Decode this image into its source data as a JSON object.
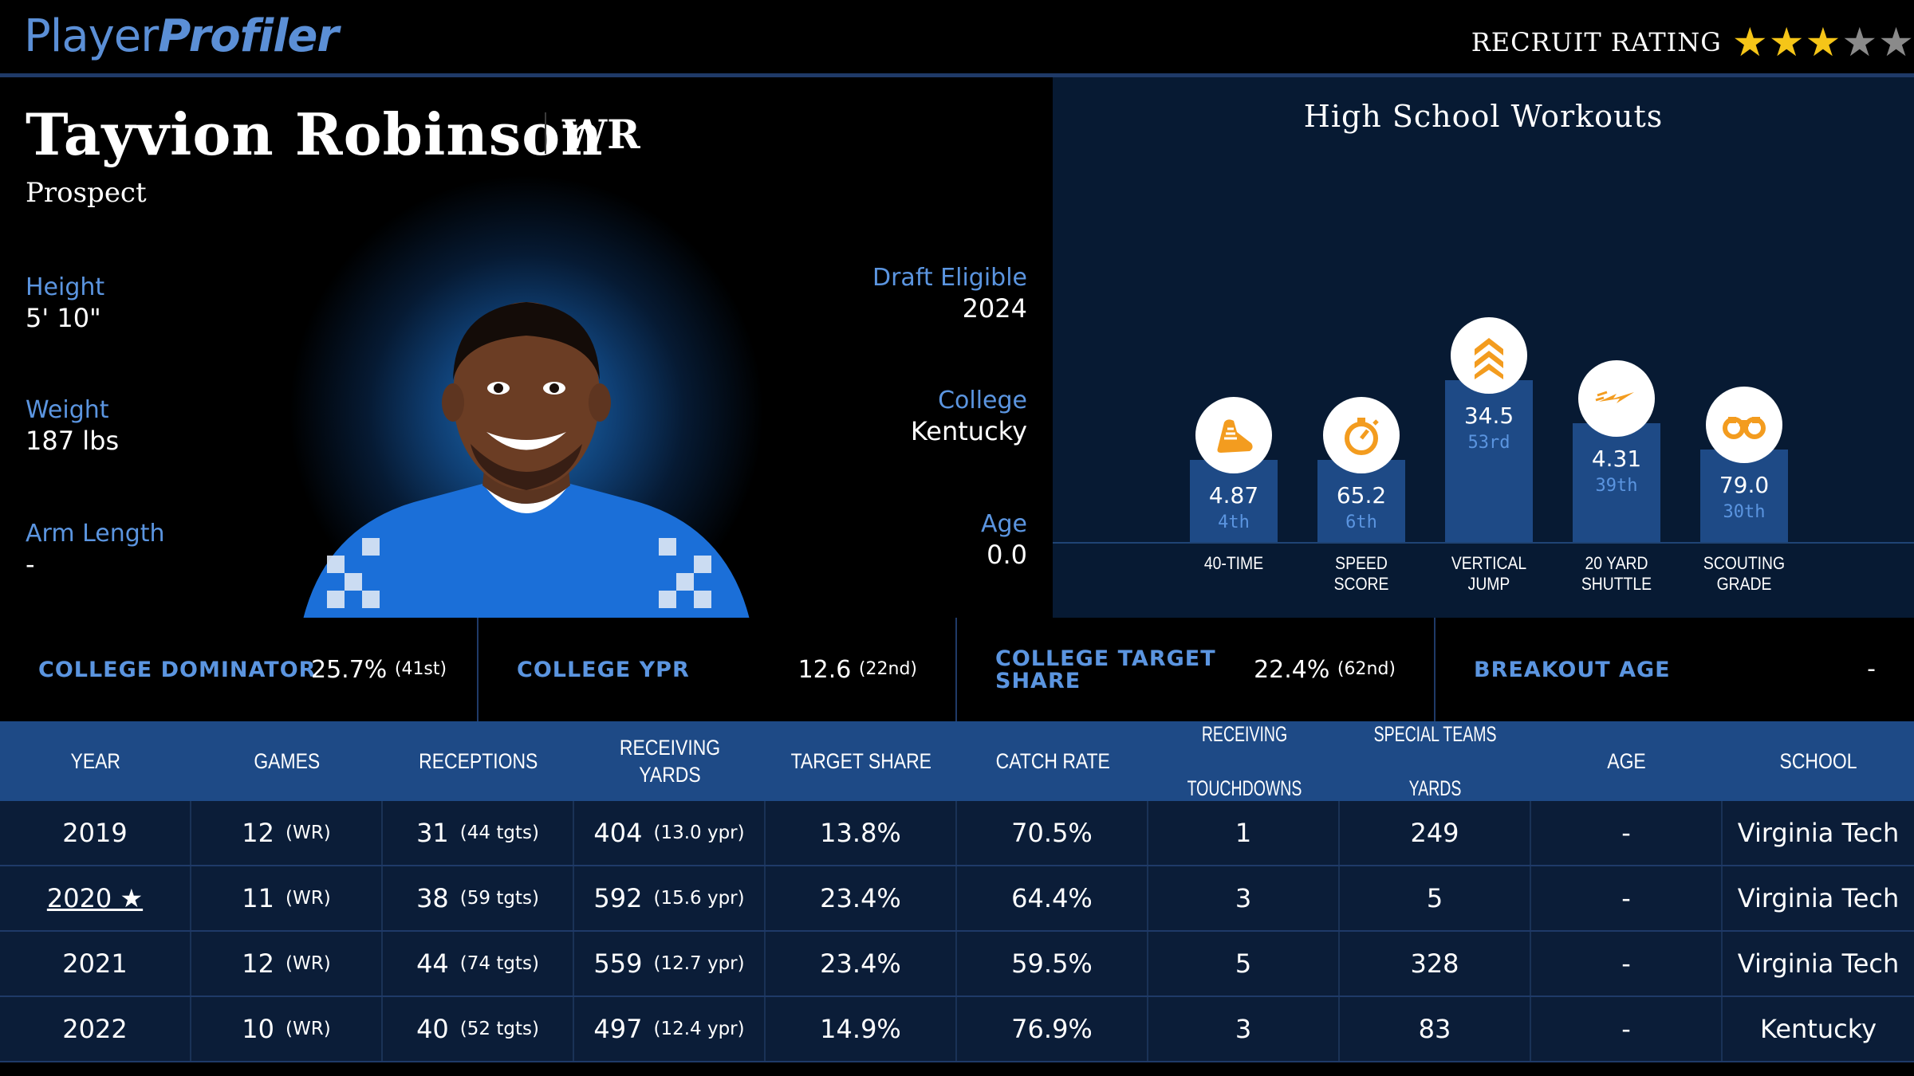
{
  "header": {
    "logo_part1": "Player",
    "logo_part2": "Profiler",
    "recruit_label": "RECRUIT RATING",
    "recruit_stars": 3,
    "recruit_stars_max": 5
  },
  "player": {
    "name": "Tayvion Robinson",
    "position": "WR",
    "status": "Prospect",
    "height_label": "Height",
    "height": "5' 10\"",
    "weight_label": "Weight",
    "weight": "187 lbs",
    "arm_label": "Arm Length",
    "arm": "-",
    "draft_label": "Draft Eligible",
    "draft": "2024",
    "college_label": "College",
    "college": "Kentucky",
    "age_label": "Age",
    "age": "0.0"
  },
  "workouts": {
    "title": "High School Workouts",
    "items": [
      {
        "value": "4.87",
        "rank": "4th",
        "label1": "40-TIME",
        "label2": "",
        "icon": "running-shoe-icon"
      },
      {
        "value": "65.2",
        "rank": "6th",
        "label1": "SPEED",
        "label2": "SCORE",
        "icon": "stopwatch-icon"
      },
      {
        "value": "34.5",
        "rank": "53rd",
        "label1": "VERTICAL",
        "label2": "JUMP",
        "icon": "chevrons-up-icon"
      },
      {
        "value": "4.31",
        "rank": "39th",
        "label1": "20 YARD",
        "label2": "SHUTTLE",
        "icon": "lightning-icon"
      },
      {
        "value": "79.0",
        "rank": "30th",
        "label1": "SCOUTING",
        "label2": "GRADE",
        "icon": "binoculars-icon"
      }
    ]
  },
  "metrics": [
    {
      "label": "COLLEGE DOMINATOR",
      "value": "25.7%",
      "rank": "(41st)"
    },
    {
      "label": "COLLEGE YPR",
      "value": "12.6",
      "rank": "(22nd)"
    },
    {
      "label1": "COLLEGE TARGET",
      "label2": "SHARE",
      "value": "22.4%",
      "rank": "(62nd)"
    },
    {
      "label": "BREAKOUT AGE",
      "value": "-",
      "rank": ""
    }
  ],
  "table": {
    "headers": [
      [
        "YEAR"
      ],
      [
        "GAMES"
      ],
      [
        "RECEPTIONS"
      ],
      [
        "RECEIVING YARDS"
      ],
      [
        "TARGET SHARE"
      ],
      [
        "CATCH RATE"
      ],
      [
        "RECEIVING",
        "TOUCHDOWNS"
      ],
      [
        "SPECIAL TEAMS",
        "YARDS"
      ],
      [
        "AGE"
      ],
      [
        "SCHOOL"
      ]
    ],
    "rows": [
      {
        "year": "2019",
        "games": "12",
        "games_sub": "(WR)",
        "rec": "31",
        "rec_sub": "(44 tgts)",
        "yds": "404",
        "yds_sub": "(13.0 ypr)",
        "ts": "13.8%",
        "cr": "70.5%",
        "td": "1",
        "st": "249",
        "age": "-",
        "school": "Virginia Tech"
      },
      {
        "year": "2020 ★",
        "games": "11",
        "games_sub": "(WR)",
        "rec": "38",
        "rec_sub": "(59 tgts)",
        "yds": "592",
        "yds_sub": "(15.6 ypr)",
        "ts": "23.4%",
        "cr": "64.4%",
        "td": "3",
        "st": "5",
        "age": "-",
        "school": "Virginia Tech"
      },
      {
        "year": "2021",
        "games": "12",
        "games_sub": "(WR)",
        "rec": "44",
        "rec_sub": "(74 tgts)",
        "yds": "559",
        "yds_sub": "(12.7 ypr)",
        "ts": "23.4%",
        "cr": "59.5%",
        "td": "5",
        "st": "328",
        "age": "-",
        "school": "Virginia Tech"
      },
      {
        "year": "2022",
        "games": "10",
        "games_sub": "(WR)",
        "rec": "40",
        "rec_sub": "(52 tgts)",
        "yds": "497",
        "yds_sub": "(12.4 ypr)",
        "ts": "14.9%",
        "cr": "76.9%",
        "td": "3",
        "st": "83",
        "age": "-",
        "school": "Kentucky"
      }
    ]
  },
  "colors": {
    "accent_blue": "#5b95e0",
    "panel_navy": "#071a33",
    "bar_blue": "#1e4a86",
    "star_gold": "#f5c518",
    "icon_orange": "#f39c1f"
  }
}
